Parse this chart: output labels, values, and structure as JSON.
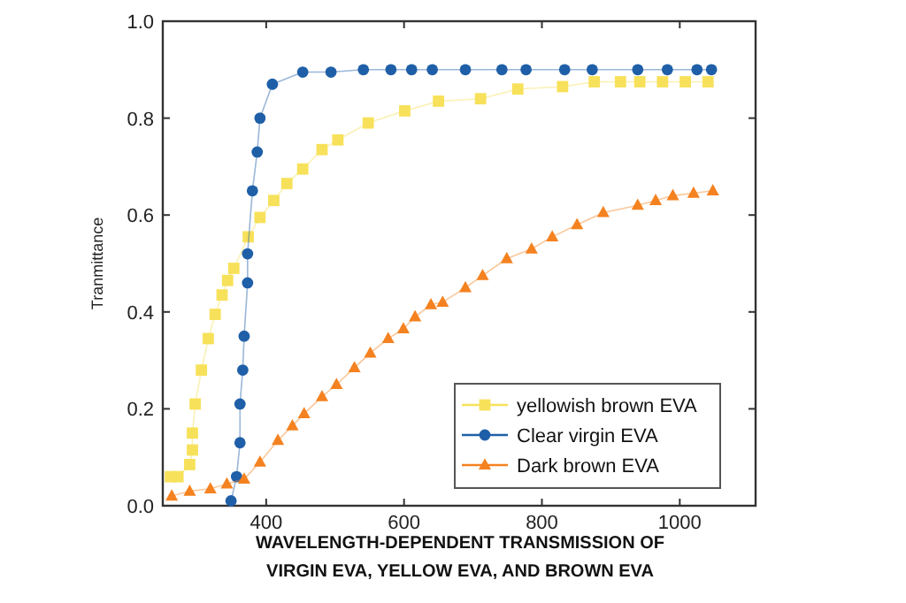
{
  "chart_data": {
    "type": "line",
    "ylabel": "Tranmittance",
    "annotations": [
      "WAVELENGTH-DEPENDENT TRANSMISSION OF VIRGIN EVA, YELLOW EVA, AND BROWN EVA"
    ],
    "xlim": [
      250,
      1110
    ],
    "xticks": [
      400,
      600,
      800,
      1000
    ],
    "ylim": [
      0,
      1
    ],
    "yticks": [
      {
        "value": 0,
        "label": "0.0"
      },
      {
        "value": 0.2,
        "label": "0.2"
      },
      {
        "value": 0.4,
        "label": "0.4"
      },
      {
        "value": 0.6,
        "label": "0.6"
      },
      {
        "value": 0.8,
        "label": "0.8"
      },
      {
        "value": 1,
        "label": "1.0"
      }
    ],
    "grid": false,
    "legend": "bottom right",
    "line_style": "solid",
    "series": [
      {
        "name": "yellowish brown EVA",
        "color": "#f7e15a",
        "marker": "square",
        "x": [
          261,
          272,
          289,
          293,
          293,
          297,
          306,
          316,
          326,
          336,
          344,
          353,
          374,
          391,
          411,
          430,
          453,
          481,
          504,
          548,
          601,
          650,
          711,
          765,
          830,
          876,
          914,
          942,
          975,
          1008,
          1041
        ],
        "values": [
          0.06,
          0.06,
          0.085,
          0.115,
          0.15,
          0.21,
          0.28,
          0.345,
          0.395,
          0.435,
          0.465,
          0.49,
          0.555,
          0.595,
          0.63,
          0.665,
          0.695,
          0.735,
          0.755,
          0.79,
          0.815,
          0.835,
          0.84,
          0.86,
          0.865,
          0.875,
          0.875,
          0.875,
          0.875,
          0.875,
          0.875
        ]
      },
      {
        "name": "Clear virgin EVA",
        "color": "#1f5fa8",
        "marker": "circle",
        "x": [
          349,
          357,
          362,
          362,
          366,
          368,
          373,
          373,
          380,
          387,
          391,
          409,
          453,
          494,
          541,
          581,
          611,
          641,
          689,
          742,
          777,
          833,
          873,
          939,
          982,
          1025,
          1046
        ],
        "values": [
          0.01,
          0.06,
          0.13,
          0.21,
          0.28,
          0.35,
          0.46,
          0.52,
          0.65,
          0.73,
          0.8,
          0.87,
          0.895,
          0.895,
          0.9,
          0.9,
          0.9,
          0.9,
          0.9,
          0.9,
          0.9,
          0.9,
          0.9,
          0.9,
          0.9,
          0.9,
          0.9
        ]
      },
      {
        "name": "Dark brown EVA",
        "color": "#f58220",
        "marker": "triangle",
        "x": [
          263,
          289,
          319,
          343,
          368,
          391,
          417,
          438,
          455,
          481,
          502,
          528,
          551,
          577,
          599,
          616,
          639,
          656,
          689,
          714,
          749,
          785,
          815,
          851,
          889,
          939,
          965,
          990,
          1020,
          1048
        ],
        "values": [
          0.02,
          0.03,
          0.035,
          0.045,
          0.055,
          0.09,
          0.135,
          0.165,
          0.19,
          0.225,
          0.25,
          0.285,
          0.315,
          0.345,
          0.365,
          0.39,
          0.415,
          0.42,
          0.45,
          0.475,
          0.51,
          0.53,
          0.555,
          0.58,
          0.605,
          0.62,
          0.63,
          0.64,
          0.645,
          0.65
        ]
      }
    ]
  }
}
